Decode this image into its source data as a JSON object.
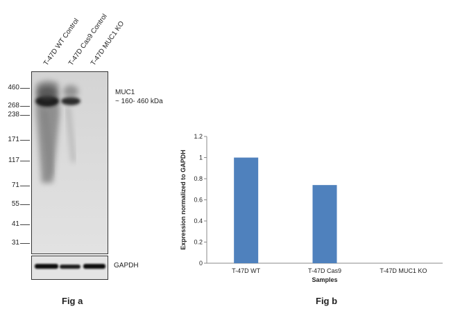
{
  "fig_a": {
    "lanes": [
      "T-47D WT Control",
      "T-47D Cas9 Control",
      "T-47D MUC1 KO"
    ],
    "markers": [
      "460",
      "268",
      "238",
      "171",
      "117",
      "71",
      "55",
      "41",
      "31"
    ],
    "band_label_1": "MUC1",
    "band_label_2": "~ 160- 460 kDa",
    "loading_control_label": "GAPDH",
    "caption": "Fig a"
  },
  "fig_b": {
    "caption": "Fig b"
  },
  "chart_data": {
    "type": "bar",
    "categories": [
      "T-47D WT",
      "T-47D Cas9",
      "T-47D MUC1 KO"
    ],
    "values": [
      1.0,
      0.74,
      0
    ],
    "xlabel": "Samples",
    "ylabel": "Expression  normalized to GAPDH",
    "ylim": [
      0,
      1.2
    ],
    "yticks": [
      "0",
      "0.2",
      "0.4",
      "0.6",
      "0.8",
      "1",
      "1.2"
    ],
    "bar_color": "#4f81bd",
    "grid": false
  }
}
